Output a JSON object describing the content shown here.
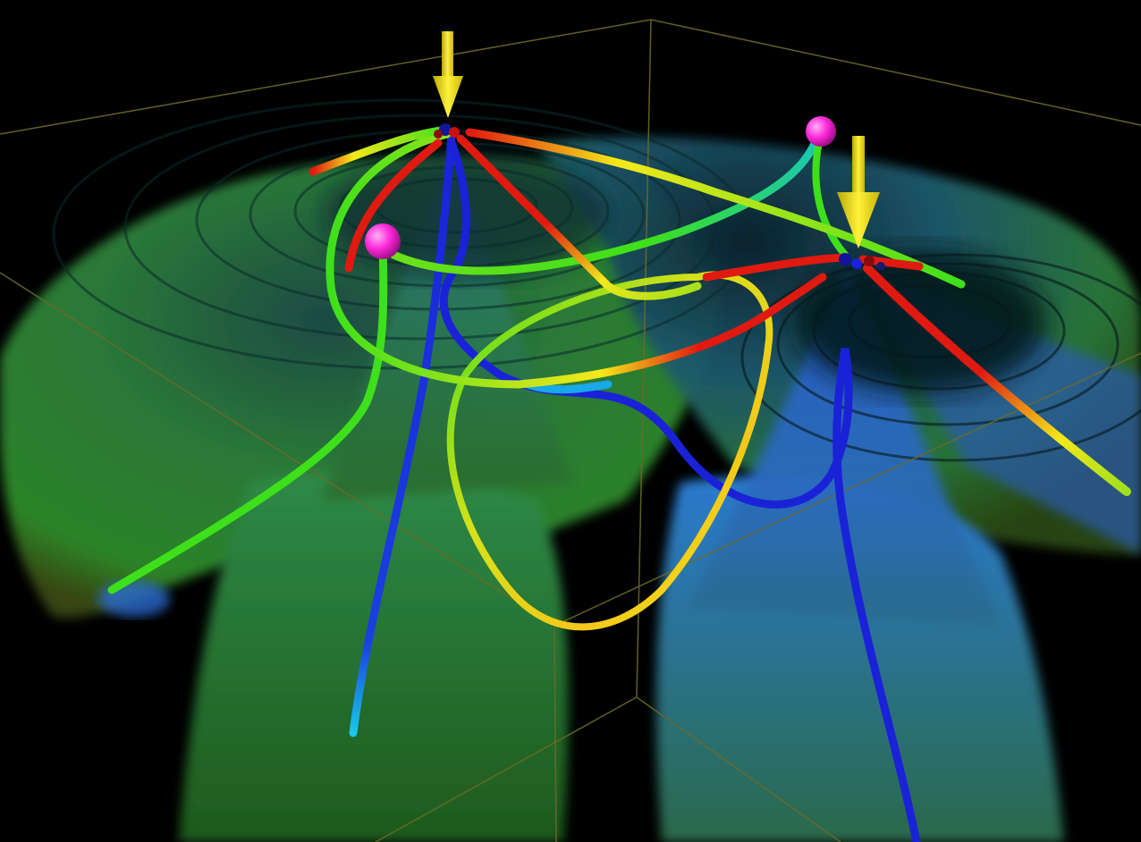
{
  "scene": {
    "description_type": "3d-volume-visualization",
    "background_color": "#000000",
    "bounding_box_color": "#6b6a2a",
    "volume_colors": {
      "green": "#2e8a2e",
      "teal": "#1f7a6a",
      "blue": "#2a5fc8",
      "ring_dark": "#0a2a2a"
    },
    "tube_colors": {
      "red": "#e01a10",
      "yellow": "#f4e81a",
      "green": "#3de01a",
      "cyan": "#19c8e8",
      "blue": "#1a22d8"
    },
    "markers": {
      "arrow_color": "#f7e40e",
      "sphere_color": "#ff2bdc",
      "arrow_count": 2,
      "sphere_count": 2
    }
  }
}
